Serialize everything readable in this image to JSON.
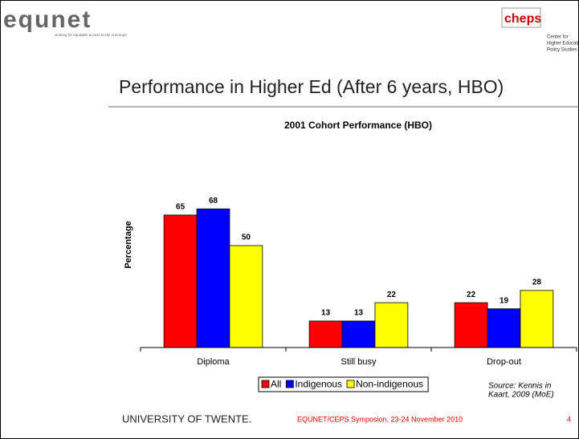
{
  "header": {
    "logo": "equnet",
    "tagline": "working for equitable access to HE in Europe",
    "partner_logo": "cheps",
    "partner_lines": [
      "Center for",
      "Higher Educati",
      "Policy Studies"
    ]
  },
  "slide_title": "Performance in Higher Ed (After 6 years, HBO)",
  "chart_data": {
    "type": "bar",
    "title": "2001 Cohort Performance (HBO)",
    "y_label": "Percentage",
    "categories": [
      "Diploma",
      "Still busy",
      "Drop-out"
    ],
    "series": [
      {
        "name": "All",
        "color": "#ff0000",
        "values": [
          65,
          13,
          22
        ]
      },
      {
        "name": "Indigenous",
        "color": "#0000ff",
        "values": [
          68,
          13,
          19
        ]
      },
      {
        "name": "Non-indigenous",
        "color": "#ffff00",
        "values": [
          50,
          22,
          28
        ]
      }
    ],
    "ylim": [
      0,
      100
    ],
    "legend": "bottom"
  },
  "source": [
    "Source: Kennis in",
    "Kaart, 2009 (MoE)"
  ],
  "footer": {
    "university": "UNIVERSITY OF TWENTE.",
    "event": "EQUNET/CEPS Symposion, 23-24 November 2010",
    "page": "4"
  }
}
